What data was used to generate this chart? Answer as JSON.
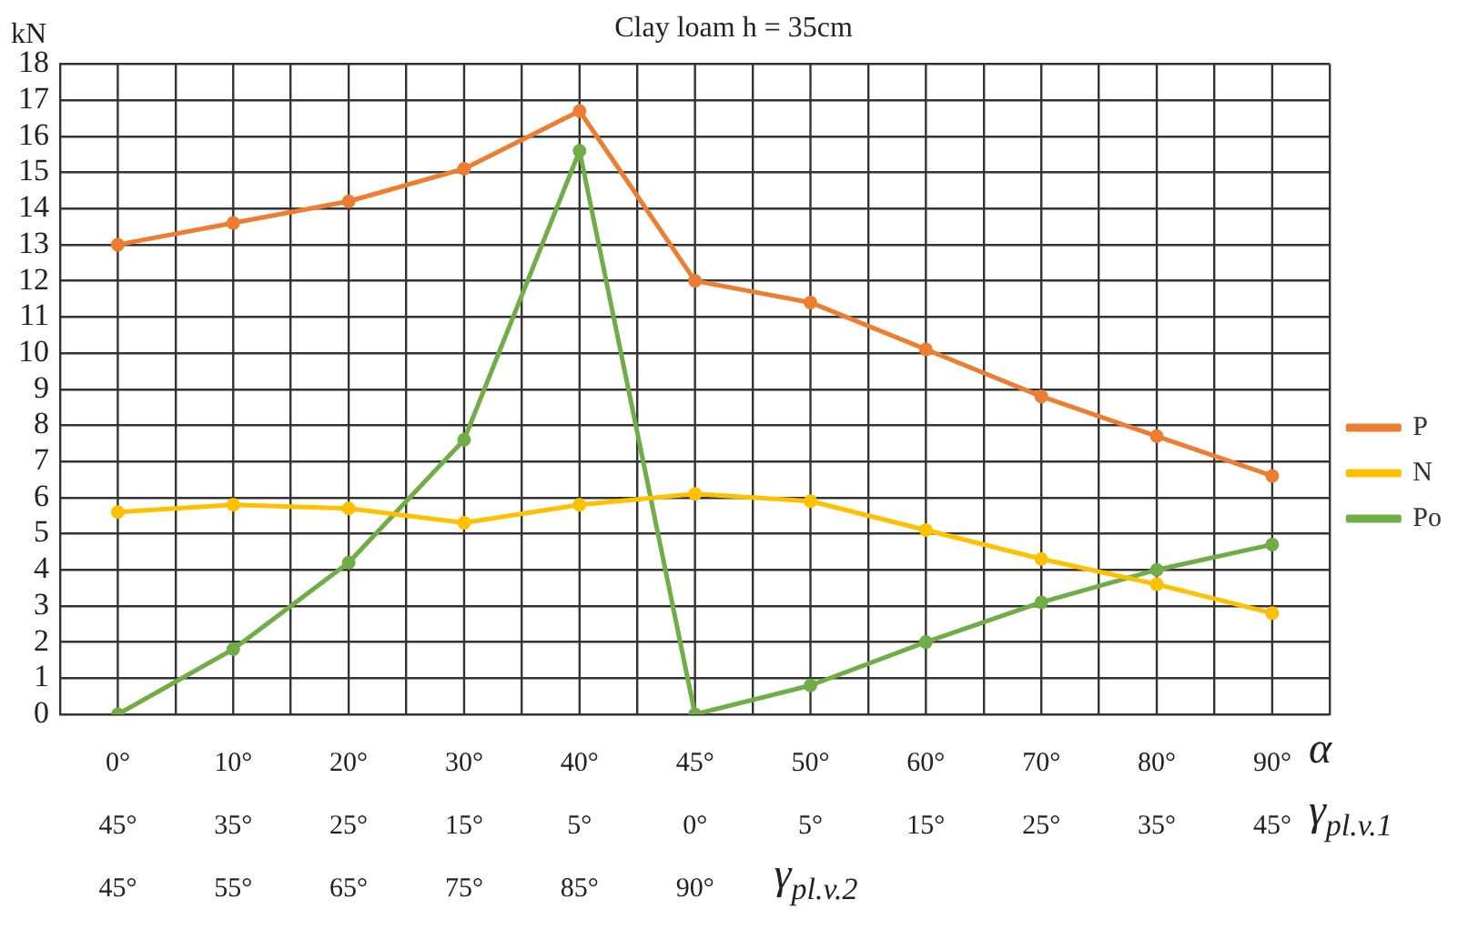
{
  "chart_data": {
    "type": "line",
    "title": "Clay loam h = 35cm",
    "ylabel": "kN",
    "xlabel": "α",
    "categories": [
      "0°\n45°\n45°",
      "10°\n35°\n55°",
      "20°\n25°\n65°",
      "30°\n15°\n75°",
      "40°\n5°\n85°",
      "45°\n0°\n90°",
      "50°\n5°",
      "60°\n15°",
      "70°\n25°",
      "80°\n35°",
      "90°\n45°"
    ],
    "series": [
      {
        "name": "P",
        "color": "#ed7d31",
        "values": [
          13.0,
          13.6,
          14.2,
          15.1,
          16.7,
          12.0,
          11.4,
          10.1,
          8.8,
          7.7,
          6.6
        ]
      },
      {
        "name": "N",
        "color": "#ffc000",
        "values": [
          5.6,
          5.8,
          5.7,
          5.3,
          5.8,
          6.1,
          5.9,
          5.1,
          4.3,
          3.6,
          2.8
        ]
      },
      {
        "name": "Po",
        "color": "#70ad47",
        "values": [
          0,
          1.8,
          4.2,
          7.6,
          15.6,
          0,
          0.8,
          2.0,
          3.1,
          4.0,
          4.7
        ]
      }
    ],
    "annotations": [
      "γ$_{pl.v.1}$",
      "γ$_{pl.v.2}$"
    ],
    "ylim": [
      0,
      18
    ],
    "yticks": [
      0,
      1,
      2,
      3,
      4,
      5,
      6,
      7,
      8,
      9,
      10,
      11,
      12,
      13,
      14,
      15,
      16,
      17,
      18
    ],
    "grid": true,
    "legend": "right",
    "marker": "circle",
    "line_style": "solid"
  }
}
